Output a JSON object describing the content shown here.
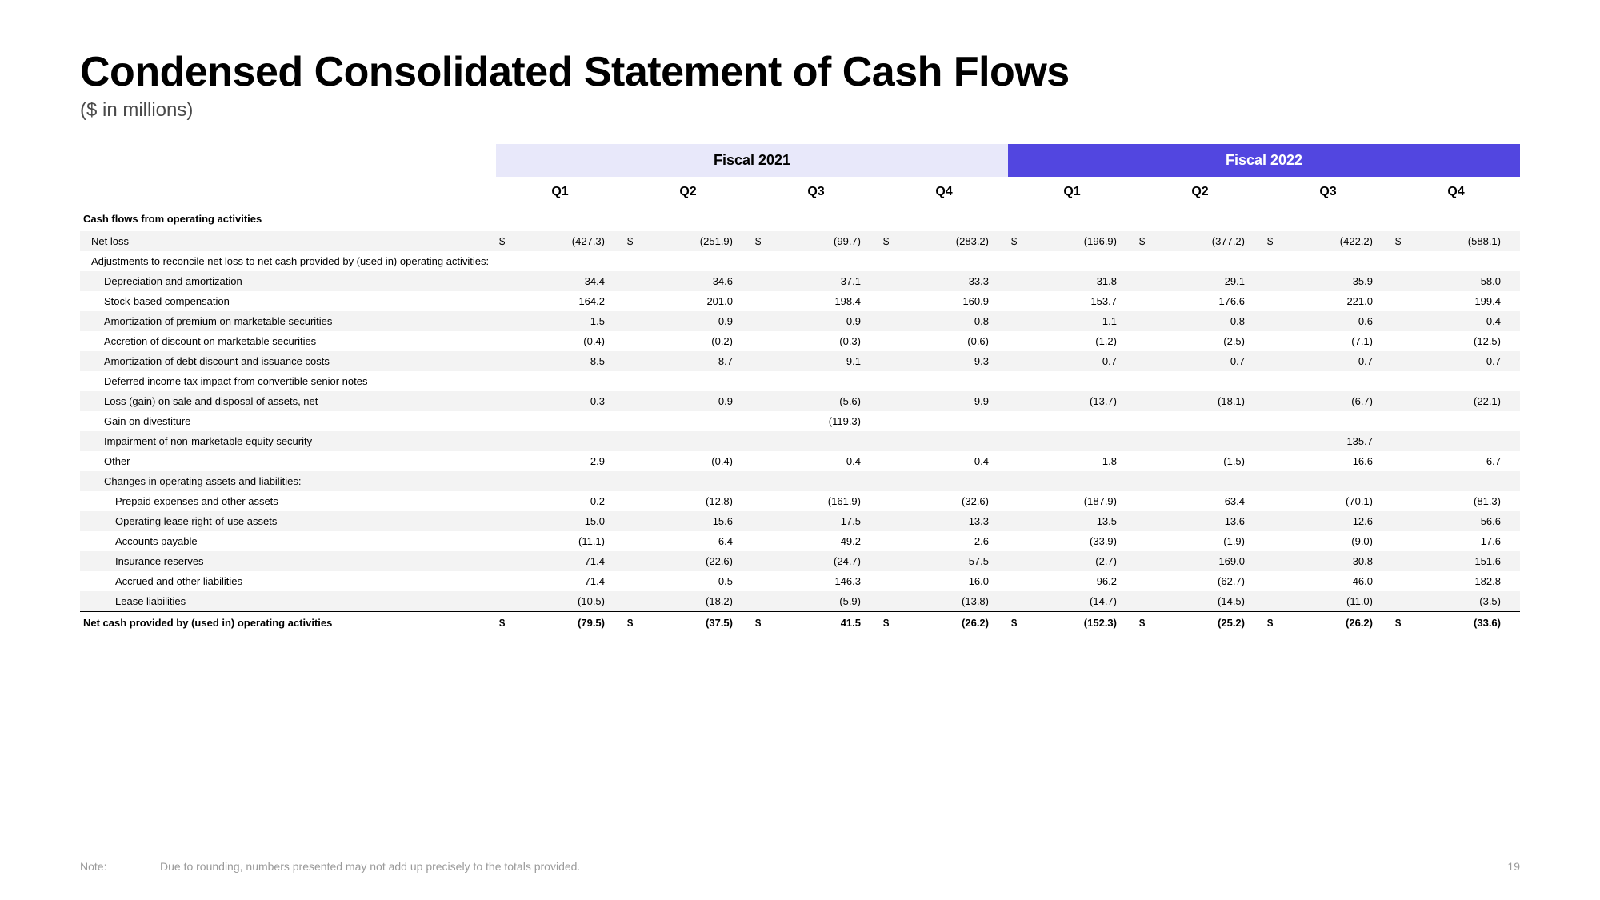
{
  "title": "Condensed Consolidated Statement of Cash Flows",
  "subtitle": "($ in millions)",
  "headers": {
    "year_2021": "Fiscal 2021",
    "year_2022": "Fiscal 2022",
    "q1": "Q1",
    "q2": "Q2",
    "q3": "Q3",
    "q4": "Q4"
  },
  "columns": [
    "fy21_q1",
    "fy21_q2",
    "fy21_q3",
    "fy21_q4",
    "fy22_q1",
    "fy22_q2",
    "fy22_q3",
    "fy22_q4"
  ],
  "rows": [
    {
      "type": "section",
      "label": "Cash flows from operating activities"
    },
    {
      "label": "Net loss",
      "indent": 0,
      "dollar": true,
      "stripe": true,
      "values": [
        "(427.3)",
        "(251.9)",
        "(99.7)",
        "(283.2)",
        "(196.9)",
        "(377.2)",
        "(422.2)",
        "(588.1)"
      ]
    },
    {
      "label": "Adjustments to reconcile net loss to net cash provided by (used in) operating activities:",
      "indent": 0,
      "header": true
    },
    {
      "label": "Depreciation and amortization",
      "indent": 1,
      "stripe": true,
      "values": [
        "34.4",
        "34.6",
        "37.1",
        "33.3",
        "31.8",
        "29.1",
        "35.9",
        "58.0"
      ]
    },
    {
      "label": "Stock-based compensation",
      "indent": 1,
      "values": [
        "164.2",
        "201.0",
        "198.4",
        "160.9",
        "153.7",
        "176.6",
        "221.0",
        "199.4"
      ]
    },
    {
      "label": "Amortization of premium on marketable securities",
      "indent": 1,
      "stripe": true,
      "values": [
        "1.5",
        "0.9",
        "0.9",
        "0.8",
        "1.1",
        "0.8",
        "0.6",
        "0.4"
      ]
    },
    {
      "label": "Accretion of discount on marketable securities",
      "indent": 1,
      "values": [
        "(0.4)",
        "(0.2)",
        "(0.3)",
        "(0.6)",
        "(1.2)",
        "(2.5)",
        "(7.1)",
        "(12.5)"
      ]
    },
    {
      "label": "Amortization of debt discount and issuance costs",
      "indent": 1,
      "stripe": true,
      "values": [
        "8.5",
        "8.7",
        "9.1",
        "9.3",
        "0.7",
        "0.7",
        "0.7",
        "0.7"
      ]
    },
    {
      "label": "Deferred income tax impact from convertible senior notes",
      "indent": 1,
      "values": [
        "–",
        "–",
        "–",
        "–",
        "–",
        "–",
        "–",
        "–"
      ]
    },
    {
      "label": "Loss (gain) on sale and disposal of assets, net",
      "indent": 1,
      "stripe": true,
      "values": [
        "0.3",
        "0.9",
        "(5.6)",
        "9.9",
        "(13.7)",
        "(18.1)",
        "(6.7)",
        "(22.1)"
      ]
    },
    {
      "label": "Gain on divestiture",
      "indent": 1,
      "values": [
        "–",
        "–",
        "(119.3)",
        "–",
        "–",
        "–",
        "–",
        "–"
      ]
    },
    {
      "label": "Impairment of non-marketable equity security",
      "indent": 1,
      "stripe": true,
      "values": [
        "–",
        "–",
        "–",
        "–",
        "–",
        "–",
        "135.7",
        "–"
      ]
    },
    {
      "label": "Other",
      "indent": 1,
      "values": [
        "2.9",
        "(0.4)",
        "0.4",
        "0.4",
        "1.8",
        "(1.5)",
        "16.6",
        "6.7"
      ]
    },
    {
      "label": "Changes in operating assets and liabilities:",
      "indent": 1,
      "header": true,
      "stripe": true
    },
    {
      "label": "Prepaid expenses and other assets",
      "indent": 2,
      "values": [
        "0.2",
        "(12.8)",
        "(161.9)",
        "(32.6)",
        "(187.9)",
        "63.4",
        "(70.1)",
        "(81.3)"
      ]
    },
    {
      "label": "Operating lease right-of-use assets",
      "indent": 2,
      "stripe": true,
      "values": [
        "15.0",
        "15.6",
        "17.5",
        "13.3",
        "13.5",
        "13.6",
        "12.6",
        "56.6"
      ]
    },
    {
      "label": "Accounts payable",
      "indent": 2,
      "values": [
        "(11.1)",
        "6.4",
        "49.2",
        "2.6",
        "(33.9)",
        "(1.9)",
        "(9.0)",
        "17.6"
      ]
    },
    {
      "label": "Insurance reserves",
      "indent": 2,
      "stripe": true,
      "values": [
        "71.4",
        "(22.6)",
        "(24.7)",
        "57.5",
        "(2.7)",
        "169.0",
        "30.8",
        "151.6"
      ]
    },
    {
      "label": "Accrued and other liabilities",
      "indent": 2,
      "values": [
        "71.4",
        "0.5",
        "146.3",
        "16.0",
        "96.2",
        "(62.7)",
        "46.0",
        "182.8"
      ]
    },
    {
      "label": "Lease liabilities",
      "indent": 2,
      "stripe": true,
      "values": [
        "(10.5)",
        "(18.2)",
        "(5.9)",
        "(13.8)",
        "(14.7)",
        "(14.5)",
        "(11.0)",
        "(3.5)"
      ]
    },
    {
      "type": "total",
      "label": "Net cash provided by (used in) operating activities",
      "dollar": true,
      "values": [
        "(79.5)",
        "(37.5)",
        "41.5",
        "(26.2)",
        "(152.3)",
        "(25.2)",
        "(26.2)",
        "(33.6)"
      ]
    }
  ],
  "footer": {
    "note_label": "Note:",
    "note_text": "Due to rounding, numbers presented may not add up precisely to the totals provided.",
    "page": "19"
  },
  "colors": {
    "hdr_2021_bg": "#e8e8fa",
    "hdr_2022_bg": "#5246e0",
    "stripe_bg": "#f3f3f3",
    "text": "#000000",
    "background": "#ffffff"
  }
}
